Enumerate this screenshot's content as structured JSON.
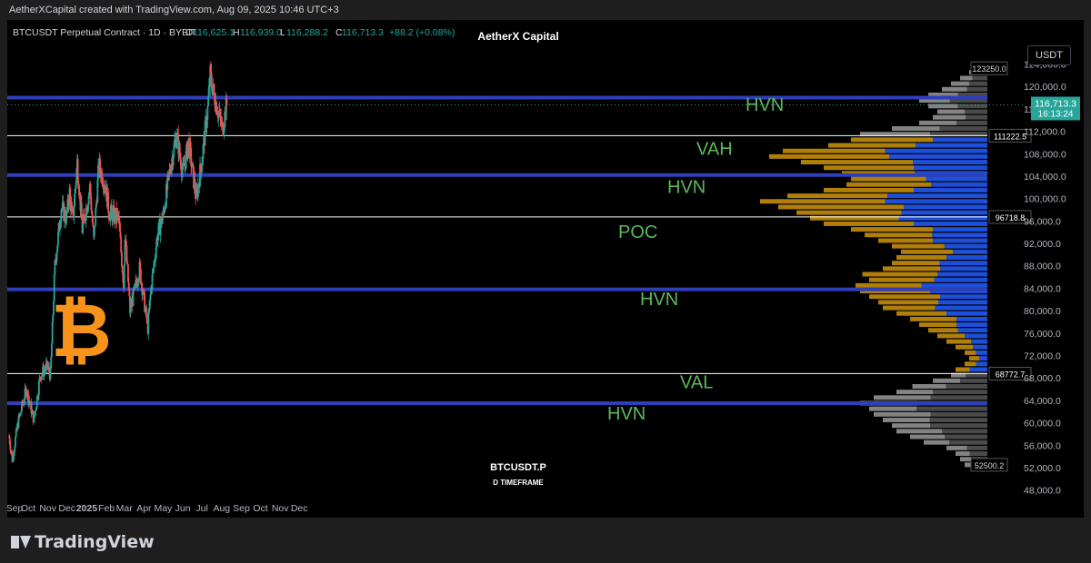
{
  "header": {
    "text": "AetherXCapital created with TradingView.com, Aug 09, 2025 10:46 UTC+3"
  },
  "symbol_info": {
    "title": "BTCUSDT Perpetual Contract · 1D · BYBIT",
    "open_label": "O",
    "open": "116,625.1",
    "high_label": "H",
    "high": "116,939.0",
    "low_label": "L",
    "low": "116,288.2",
    "close_label": "C",
    "close": "116,713.3",
    "change": "+88.2 (+0.08%)"
  },
  "watermark_top": "AetherX Capital",
  "watermark_bottom": {
    "symbol": "BTCUSDT.P",
    "timeframe": "D TIMEFRAME"
  },
  "currency_button": "USDT",
  "price_tag": {
    "price": "116,713.3",
    "countdown": "16:13:24"
  },
  "footer": {
    "logo_text": "TradingView"
  },
  "colors": {
    "up": "#26a69a",
    "down": "#ef5350",
    "hvn_line": "#2f3fb8",
    "white_line": "#ffffff",
    "profile_gold": "#b8860b",
    "profile_blue": "#1e4fd8",
    "profile_grey": "#8a8a8a",
    "label_green": "#5cb85c",
    "btc_orange": "#f7931a"
  },
  "chart_data": {
    "type": "candlestick-with-volume-profile",
    "symbol": "BTCUSDT.P",
    "timeframe": "1D",
    "ylim": [
      46000,
      127000
    ],
    "y_ticks": [
      48000,
      52000,
      56000,
      60000,
      64000,
      68000,
      72000,
      76000,
      80000,
      84000,
      88000,
      92000,
      96000,
      100000,
      104000,
      108000,
      112000,
      116000,
      120000,
      124000
    ],
    "y_tick_labels": [
      "48,000.0",
      "52,000.0",
      "56,000.0",
      "60,000.0",
      "64,000.0",
      "68,000.0",
      "72,000.0",
      "76,000.0",
      "80,000.0",
      "84,000.0",
      "88,000.0",
      "92,000.0",
      "96,000.0",
      "100,000.0",
      "104,000.0",
      "108,000.0",
      "112,000.0",
      "116,000.0",
      "120,000.0",
      "124,000.0"
    ],
    "x_labels": [
      "Sep",
      "Oct",
      "Nov",
      "Dec",
      "2025",
      "Feb",
      "Mar",
      "Apr",
      "May",
      "Jun",
      "Jul",
      "Aug",
      "Sep",
      "Oct",
      "Nov",
      "Dec"
    ],
    "x_label_bold": [
      false,
      false,
      false,
      false,
      true,
      false,
      false,
      false,
      false,
      false,
      false,
      false,
      false,
      false,
      false,
      false
    ],
    "price_path": [
      [
        "2024-09-01",
        57500
      ],
      [
        "2024-09-06",
        53500
      ],
      [
        "2024-09-15",
        60000
      ],
      [
        "2024-09-28",
        66000
      ],
      [
        "2024-10-10",
        60500
      ],
      [
        "2024-10-20",
        68500
      ],
      [
        "2024-10-31",
        70000
      ],
      [
        "2024-11-05",
        68500
      ],
      [
        "2024-11-12",
        88000
      ],
      [
        "2024-11-22",
        98500
      ],
      [
        "2024-11-30",
        96500
      ],
      [
        "2024-12-05",
        101000
      ],
      [
        "2024-12-10",
        96000
      ],
      [
        "2024-12-17",
        106500
      ],
      [
        "2024-12-25",
        94500
      ],
      [
        "2025-01-06",
        102000
      ],
      [
        "2025-01-12",
        92500
      ],
      [
        "2025-01-20",
        106000
      ],
      [
        "2025-01-31",
        102000
      ],
      [
        "2025-02-05",
        97500
      ],
      [
        "2025-02-20",
        96500
      ],
      [
        "2025-02-28",
        84500
      ],
      [
        "2025-03-02",
        94000
      ],
      [
        "2025-03-10",
        80000
      ],
      [
        "2025-03-25",
        87500
      ],
      [
        "2025-04-07",
        77000
      ],
      [
        "2025-04-12",
        84000
      ],
      [
        "2025-04-22",
        93500
      ],
      [
        "2025-05-01",
        97000
      ],
      [
        "2025-05-10",
        104000
      ],
      [
        "2025-05-22",
        111500
      ],
      [
        "2025-06-01",
        104500
      ],
      [
        "2025-06-10",
        110000
      ],
      [
        "2025-06-22",
        100000
      ],
      [
        "2025-07-01",
        107000
      ],
      [
        "2025-07-10",
        116000
      ],
      [
        "2025-07-14",
        122000
      ],
      [
        "2025-07-20",
        118500
      ],
      [
        "2025-08-02",
        112500
      ],
      [
        "2025-08-09",
        116713
      ]
    ],
    "levels": [
      {
        "label": "HVN",
        "price": 118000,
        "color": "#2f3fb8"
      },
      {
        "label": "VAH",
        "price": 111222.5,
        "color": "#ffffff",
        "tag": "111222.5"
      },
      {
        "label": "HVN",
        "price": 104200,
        "color": "#2f3fb8"
      },
      {
        "label": "POC",
        "price": 96718.8,
        "color": "#ffffff",
        "tag": "96718.8"
      },
      {
        "label": "HVN",
        "price": 83800,
        "color": "#2f3fb8"
      },
      {
        "label": "VAL",
        "price": 68772.7,
        "color": "#ffffff",
        "tag": "68772.7"
      },
      {
        "label": "HVN",
        "price": 63500,
        "color": "#2f3fb8"
      }
    ],
    "profile_extremes": [
      {
        "label": "123250.0",
        "price": 123250
      },
      {
        "label": "52500.2",
        "price": 52500.2
      }
    ],
    "current_price": 116713.3,
    "volume_profile": {
      "price_bins_from": 52000,
      "price_bins_to": 124000,
      "bin_size": 1000,
      "value_area_low": 68772.7,
      "value_area_high": 111222.5,
      "total": [
        0.1,
        0.12,
        0.14,
        0.18,
        0.28,
        0.34,
        0.4,
        0.42,
        0.46,
        0.5,
        0.52,
        0.56,
        0.5,
        0.4,
        0.33,
        0.24,
        0.16,
        0.14,
        0.1,
        0.08,
        0.1,
        0.14,
        0.18,
        0.22,
        0.26,
        0.3,
        0.34,
        0.4,
        0.46,
        0.48,
        0.52,
        0.56,
        0.58,
        0.52,
        0.55,
        0.46,
        0.42,
        0.4,
        0.38,
        0.42,
        0.48,
        0.54,
        0.6,
        0.72,
        0.78,
        0.84,
        0.92,
        1.0,
        0.88,
        0.72,
        0.62,
        0.6,
        0.64,
        0.72,
        0.82,
        0.96,
        0.9,
        0.7,
        0.6,
        0.56,
        0.42,
        0.3,
        0.24,
        0.22,
        0.26,
        0.3,
        0.26,
        0.2,
        0.16,
        0.12,
        0.08,
        0.06
      ],
      "up_share": [
        0.5,
        0.6,
        0.55,
        0.5,
        0.6,
        0.55,
        0.5,
        0.6,
        0.55,
        0.5,
        0.6,
        0.55,
        0.5,
        0.6,
        0.55,
        0.5,
        0.6,
        0.55,
        0.5,
        0.45,
        0.5,
        0.45,
        0.4,
        0.45,
        0.5,
        0.45,
        0.4,
        0.45,
        0.5,
        0.45,
        0.4,
        0.45,
        0.5,
        0.45,
        0.4,
        0.45,
        0.5,
        0.45,
        0.4,
        0.45,
        0.5,
        0.45,
        0.4,
        0.45,
        0.5,
        0.45,
        0.4,
        0.45,
        0.5,
        0.45,
        0.4,
        0.45,
        0.5,
        0.45,
        0.4,
        0.45,
        0.5,
        0.45,
        0.4,
        0.45,
        0.5,
        0.45,
        0.4,
        0.45,
        0.5,
        0.55,
        0.5,
        0.45,
        0.5,
        0.55,
        0.5,
        0.5
      ]
    }
  }
}
